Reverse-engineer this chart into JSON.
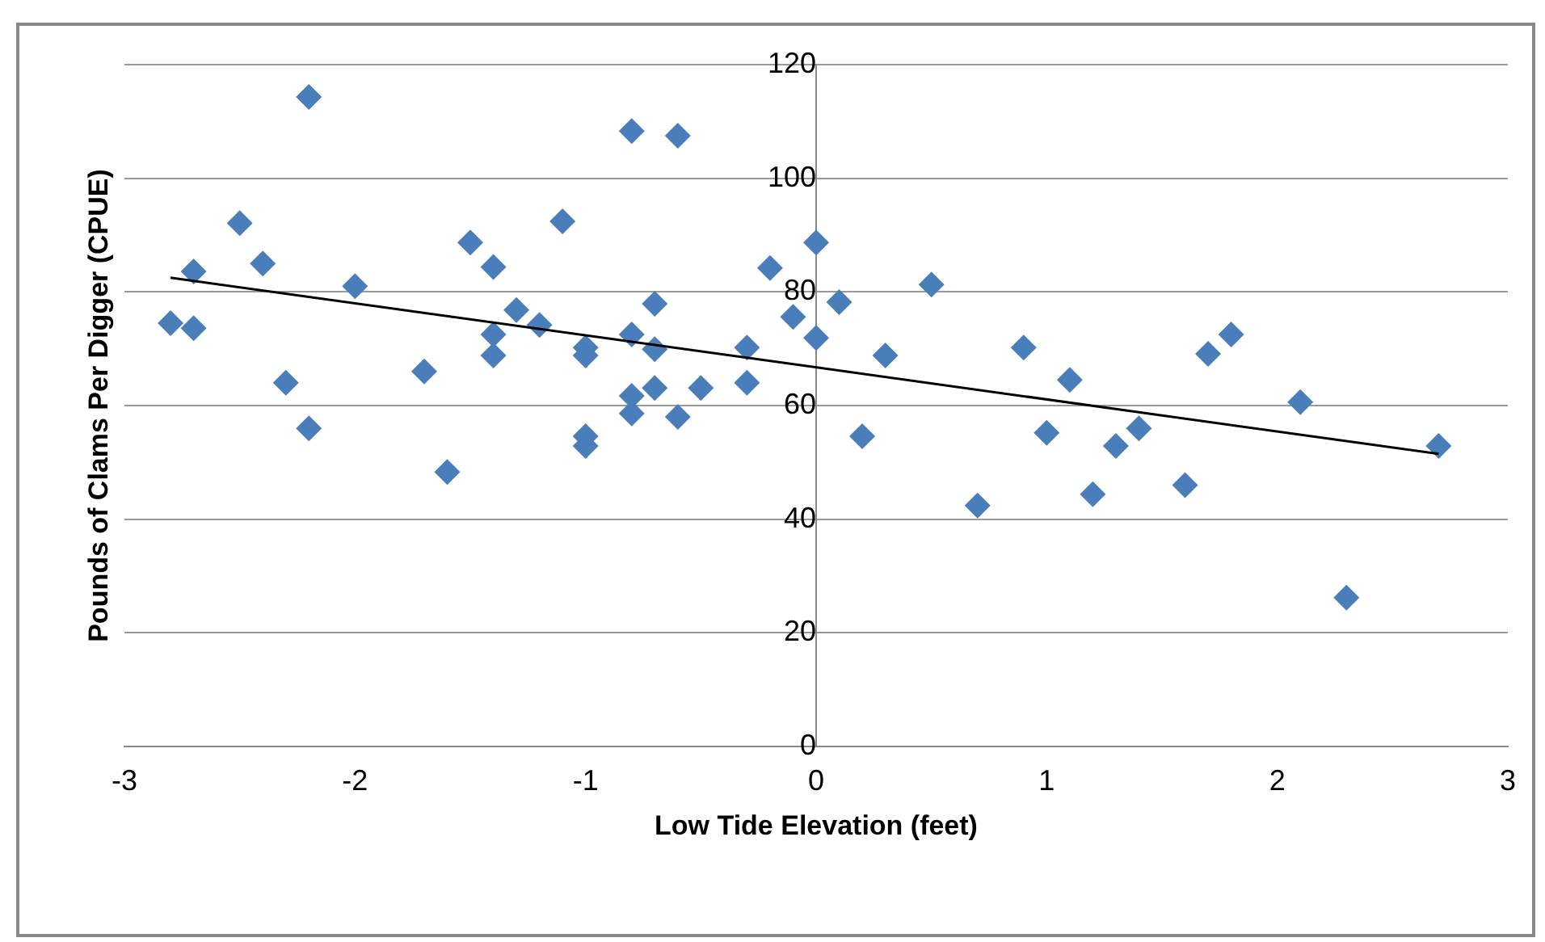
{
  "chart_data": {
    "type": "scatter",
    "xlabel": "Low Tide Elevation (feet)",
    "ylabel": "Pounds of Clams Per Digger (CPUE)",
    "xlim": [
      -3,
      3
    ],
    "xticks": [
      -3,
      -2,
      -1,
      0,
      1,
      2,
      3
    ],
    "ylim": [
      0,
      120
    ],
    "yticks": [
      0,
      20,
      40,
      60,
      80,
      100,
      120
    ],
    "grid": "y",
    "legend": false,
    "marker": "diamond",
    "series": [
      {
        "type": "scatter",
        "color": "#4a7ebb",
        "x": [
          -2.8,
          -2.7,
          -2.7,
          -2.5,
          -2.4,
          -2.3,
          -2.2,
          -2.2,
          -2.0,
          -1.7,
          -1.6,
          -1.5,
          -1.4,
          -1.4,
          -1.4,
          -1.3,
          -1.2,
          -1.1,
          -1.0,
          -1.0,
          -1.0,
          -1.0,
          -0.8,
          -0.8,
          -0.8,
          -0.8,
          -0.7,
          -0.7,
          -0.7,
          -0.6,
          -0.6,
          -0.5,
          -0.3,
          -0.3,
          -0.2,
          -0.1,
          0,
          0,
          0.1,
          0.2,
          0.3,
          0.5,
          0.7,
          0.9,
          1.0,
          1.1,
          1.2,
          1.3,
          1.4,
          1.6,
          1.7,
          1.8,
          2.1,
          2.3,
          2.7
        ],
        "values": [
          74.5,
          83.6,
          73.6,
          92.1,
          85,
          64,
          114.3,
          56,
          81,
          66,
          48.3,
          88.7,
          84.4,
          72.5,
          68.8,
          76.8,
          74.2,
          92.4,
          70.2,
          68.8,
          54.6,
          52.9,
          108.3,
          72.5,
          61.7,
          58.6,
          77.9,
          69.9,
          63.1,
          107.5,
          58,
          63.1,
          70.2,
          64,
          84.2,
          75.6,
          88.7,
          71.9,
          78.2,
          54.6,
          68.8,
          81.3,
          42.4,
          70.2,
          55.2,
          64.5,
          44.4,
          52.9,
          56,
          46,
          69.1,
          72.5,
          60.6,
          26.2,
          52.9
        ]
      },
      {
        "type": "line",
        "color": "#000000",
        "marker": "none",
        "x": [
          -2.8,
          2.7
        ],
        "values": [
          82.5,
          51.5
        ]
      }
    ]
  }
}
